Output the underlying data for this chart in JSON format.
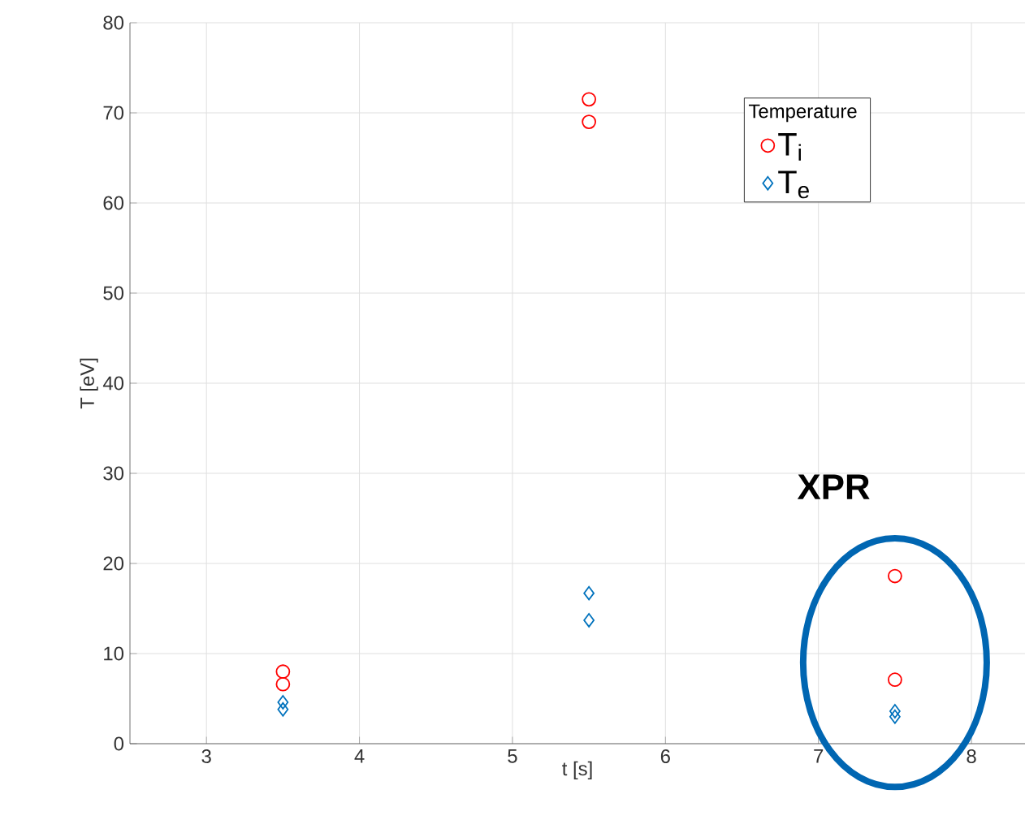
{
  "chart_data": {
    "type": "scatter",
    "xlabel": "t [s]",
    "ylabel": "T [eV]",
    "legend_title": "Temperature",
    "xlim": [
      2.5,
      8.35
    ],
    "xticks": [
      3,
      4,
      5,
      6,
      7,
      8
    ],
    "ylim": [
      0,
      80
    ],
    "yticks": [
      0,
      10,
      20,
      30,
      40,
      50,
      60,
      70,
      80
    ],
    "grid": true,
    "legend": "top right",
    "series": [
      {
        "name": "T$_{i}$",
        "color": "#ff0000",
        "marker": "circle",
        "x": [
          3.5,
          3.5,
          5.5,
          5.5,
          7.5,
          7.5
        ],
        "values": [
          8.0,
          6.6,
          71.5,
          69.0,
          18.6,
          7.1
        ]
      },
      {
        "name": "T$_{e}$",
        "color": "#0072bd",
        "marker": "diamond",
        "x": [
          3.5,
          3.5,
          5.5,
          5.5,
          7.5,
          7.5
        ],
        "values": [
          4.6,
          3.8,
          16.7,
          13.7,
          3.6,
          3.0
        ]
      }
    ],
    "annotations": [
      "XPR"
    ]
  }
}
